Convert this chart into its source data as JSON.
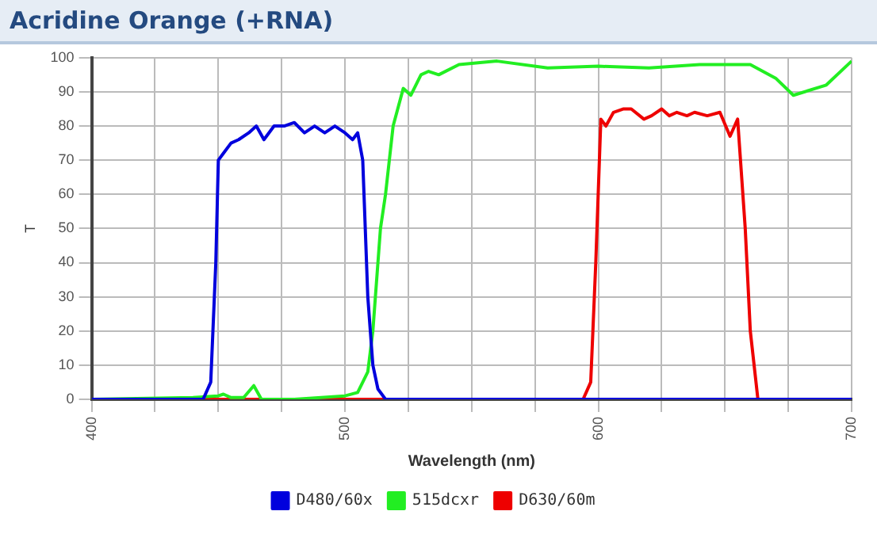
{
  "chart_data": {
    "type": "line",
    "title": "Acridine Orange (+RNA)",
    "xlabel": "Wavelength (nm)",
    "ylabel": "T",
    "xlim": [
      400,
      700
    ],
    "xticks": [
      400,
      {
        "value": 425,
        "label": null
      },
      {
        "value": 450,
        "label": null
      },
      {
        "value": 475,
        "label": null
      },
      500,
      {
        "value": 525,
        "label": null
      },
      {
        "value": 550,
        "label": null
      },
      {
        "value": 575,
        "label": null
      },
      600,
      {
        "value": 625,
        "label": null
      },
      {
        "value": 650,
        "label": null
      },
      {
        "value": 675,
        "label": null
      },
      700
    ],
    "ylim": [
      0,
      100
    ],
    "yticks": [
      0,
      10,
      20,
      30,
      40,
      50,
      60,
      70,
      80,
      90,
      100
    ],
    "grid": true,
    "legend": "bottom",
    "marker": "none",
    "series": [
      {
        "name": "D480/60x",
        "color": "#0000dd",
        "x": [
          400,
          440,
          444,
          447,
          449,
          450,
          452,
          455,
          458,
          462,
          465,
          468,
          472,
          476,
          480,
          484,
          488,
          492,
          496,
          500,
          503,
          505,
          507,
          509,
          511,
          513,
          516,
          530,
          700
        ],
        "values": [
          0,
          0,
          0,
          5,
          40,
          70,
          72,
          75,
          76,
          78,
          80,
          76,
          80,
          80,
          81,
          78,
          80,
          78,
          80,
          78,
          76,
          78,
          70,
          30,
          10,
          3,
          0,
          0,
          0
        ]
      },
      {
        "name": "515dcxr",
        "color": "#22ee22",
        "x": [
          400,
          440,
          450,
          452,
          455,
          460,
          464,
          467,
          480,
          500,
          505,
          509,
          511,
          514,
          516,
          519,
          523,
          526,
          530,
          533,
          537,
          545,
          560,
          580,
          600,
          620,
          640,
          660,
          670,
          677,
          690,
          700
        ],
        "values": [
          0,
          0.5,
          1,
          1.5,
          0.5,
          0.5,
          4,
          0,
          0,
          1,
          2,
          8,
          20,
          50,
          60,
          80,
          91,
          89,
          95,
          96,
          95,
          98,
          99,
          97,
          97.5,
          97,
          98,
          98,
          94,
          89,
          92,
          99
        ]
      },
      {
        "name": "D630/60m",
        "color": "#ee0000",
        "x": [
          400,
          590,
          594,
          597,
          599,
          601,
          603,
          606,
          610,
          613,
          618,
          621,
          625,
          628,
          631,
          635,
          638,
          643,
          648,
          652,
          655,
          658,
          660,
          663,
          670,
          700
        ],
        "values": [
          0,
          0,
          0,
          5,
          40,
          82,
          80,
          84,
          85,
          85,
          82,
          83,
          85,
          83,
          84,
          83,
          84,
          83,
          84,
          77,
          82,
          50,
          20,
          0,
          0,
          0
        ]
      }
    ]
  }
}
